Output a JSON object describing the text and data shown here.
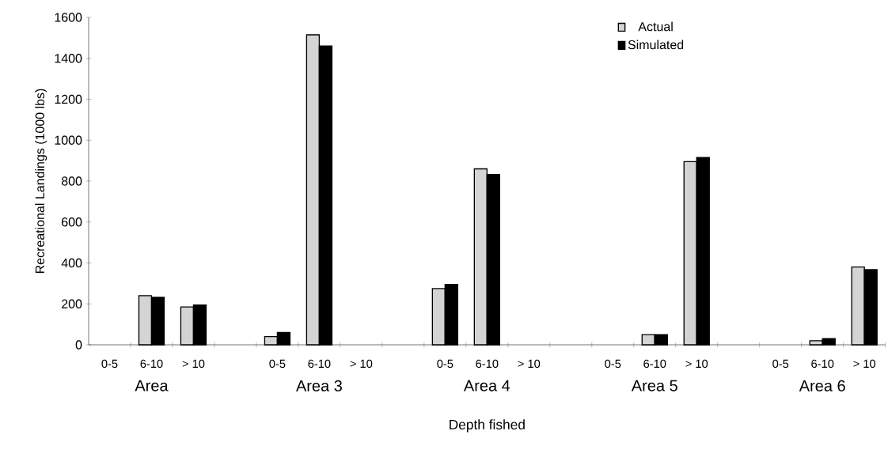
{
  "chart_data": {
    "type": "bar",
    "xlabel": "Depth fished",
    "ylabel": "Recreational Landings (1000 lbs)",
    "categories": [
      "0-5",
      "6-10",
      "> 10",
      null,
      "0-5",
      "6-10",
      "> 10",
      null,
      "0-5",
      "6-10",
      "> 10",
      null,
      "0-5",
      "6-10",
      "> 10",
      null,
      "0-5",
      "6-10",
      "> 10"
    ],
    "series": [
      {
        "name": "Actual",
        "color": "#d4d4d4",
        "values": [
          null,
          240,
          185,
          null,
          40,
          1515,
          null,
          null,
          275,
          860,
          null,
          null,
          null,
          50,
          895,
          null,
          null,
          20,
          380
        ]
      },
      {
        "name": "Simulated",
        "color": "#000000",
        "values": [
          null,
          232,
          195,
          null,
          60,
          1460,
          null,
          null,
          295,
          832,
          null,
          null,
          null,
          50,
          915,
          null,
          null,
          30,
          367
        ]
      }
    ],
    "annotations": [
      "Area",
      "Area 3",
      "Area 4",
      "Area 5",
      "Area 6"
    ],
    "ylim": [
      0,
      1600
    ],
    "yticks": [
      0,
      200,
      400,
      600,
      800,
      1000,
      1200,
      1400,
      1600
    ],
    "legend": "top right",
    "grid": false
  }
}
